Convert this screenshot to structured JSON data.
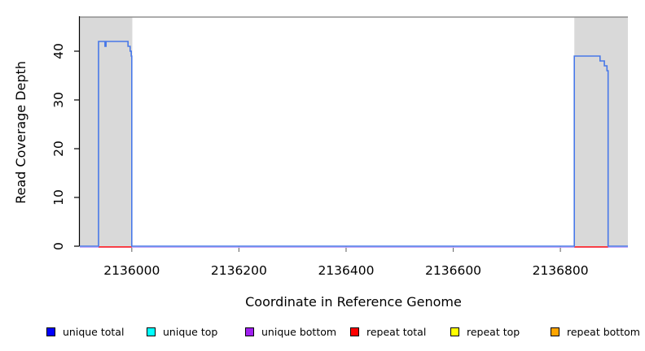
{
  "chart_data": {
    "type": "area",
    "title": "",
    "xlabel": "Coordinate in Reference Genome",
    "ylabel": "Read Coverage Depth",
    "xlim": [
      2135903,
      2136926
    ],
    "ylim": [
      0,
      47
    ],
    "x_ticks": [
      2136000,
      2136200,
      2136400,
      2136600,
      2136800
    ],
    "x_tick_labels": [
      "2136000",
      "2136200",
      "2136400",
      "2136600",
      "2136800"
    ],
    "y_ticks": [
      0,
      10,
      20,
      30,
      40
    ],
    "y_tick_labels": [
      "0",
      "10",
      "20",
      "30",
      "40"
    ],
    "grid": false,
    "top_boundary_depth": 47,
    "shaded_regions": [
      {
        "start": 2135903,
        "end": 2136001
      },
      {
        "start": 2136826,
        "end": 2136926
      }
    ],
    "series": [
      {
        "name": "unique total coverage",
        "render": "steps",
        "color": "#4878e8",
        "points": [
          [
            2135903,
            0
          ],
          [
            2135938,
            0
          ],
          [
            2135938,
            42
          ],
          [
            2135950,
            42
          ],
          [
            2135950,
            41
          ],
          [
            2135952,
            41
          ],
          [
            2135952,
            42
          ],
          [
            2135993,
            42
          ],
          [
            2135993,
            41
          ],
          [
            2135997,
            41
          ],
          [
            2135997,
            40
          ],
          [
            2135999,
            40
          ],
          [
            2135999,
            39
          ],
          [
            2136000,
            39
          ],
          [
            2136000,
            0
          ],
          [
            2136826,
            0
          ],
          [
            2136826,
            39
          ],
          [
            2136874,
            39
          ],
          [
            2136874,
            38
          ],
          [
            2136882,
            38
          ],
          [
            2136882,
            37
          ],
          [
            2136887,
            37
          ],
          [
            2136887,
            36
          ],
          [
            2136889,
            36
          ],
          [
            2136889,
            0
          ],
          [
            2136926,
            0
          ]
        ]
      },
      {
        "name": "unique bottom baseline",
        "render": "baseline",
        "color": "#c9aaf5",
        "depth": 0,
        "segments": [
          [
            2135903,
            2136926
          ]
        ]
      },
      {
        "name": "repeat total baseline",
        "render": "baseline",
        "color": "#ff3232",
        "depth": 0,
        "segments": [
          [
            2135938,
            2136000
          ],
          [
            2136826,
            2136889
          ]
        ]
      }
    ],
    "colors": {
      "flank_region_fill": "#d9d9d9",
      "top_boundary_line": "#909090",
      "axis_line": "#000000",
      "x_tick_mark": "#777777"
    }
  },
  "legend": {
    "items": [
      {
        "label": "unique total",
        "color": "#0000ff"
      },
      {
        "label": "unique top",
        "color": "#00ffff"
      },
      {
        "label": "unique bottom",
        "color": "#a020f0"
      },
      {
        "label": "repeat total",
        "color": "#ff0000"
      },
      {
        "label": "repeat top",
        "color": "#ffff00"
      },
      {
        "label": "repeat bottom",
        "color": "#ffa500"
      }
    ]
  }
}
